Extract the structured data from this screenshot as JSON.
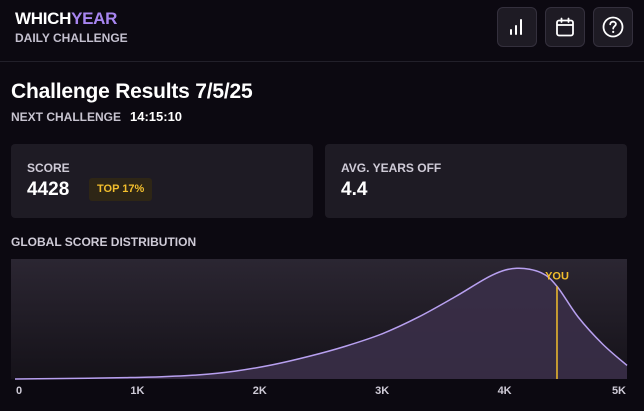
{
  "header": {
    "logo_primary": "WHICH",
    "logo_accent": "YEAR",
    "subtitle": "DAILY CHALLENGE",
    "buttons": [
      {
        "icon": "bar-chart-icon"
      },
      {
        "icon": "calendar-icon"
      },
      {
        "icon": "help-icon"
      }
    ]
  },
  "results": {
    "title": "Challenge Results 7/5/25",
    "next_label": "NEXT CHALLENGE",
    "next_countdown": "14:15:10"
  },
  "score_card": {
    "label": "SCORE",
    "value": "4428",
    "badge": "TOP 17%"
  },
  "years_card": {
    "label": "AVG. YEARS OFF",
    "value": "4.4"
  },
  "colors": {
    "accent": "#a785f0",
    "badge_text": "#f2be2d",
    "marker": "#f2be2d",
    "curve": "#b8a0f0"
  },
  "chart_data": {
    "type": "area",
    "title": "GLOBAL SCORE DISTRIBUTION",
    "x_ticks": [
      {
        "value": 0,
        "label": "0"
      },
      {
        "value": 1000,
        "label": "1K"
      },
      {
        "value": 2000,
        "label": "2K"
      },
      {
        "value": 3000,
        "label": "3K"
      },
      {
        "value": 4000,
        "label": "4K"
      },
      {
        "value": 5000,
        "label": "5K"
      }
    ],
    "xlim": [
      0,
      5000
    ],
    "ylim": [
      0,
      1
    ],
    "grid": false,
    "x": [
      0,
      300,
      600,
      900,
      1200,
      1500,
      1800,
      2100,
      2400,
      2700,
      3000,
      3300,
      3600,
      3900,
      4100,
      4300,
      4428,
      4600,
      4800,
      5000
    ],
    "y": [
      0.0,
      0.003,
      0.007,
      0.012,
      0.02,
      0.036,
      0.07,
      0.125,
      0.2,
      0.29,
      0.4,
      0.55,
      0.73,
      0.92,
      0.98,
      0.94,
      0.82,
      0.55,
      0.31,
      0.12
    ],
    "marker": {
      "x": 4428,
      "label": "YOU"
    }
  }
}
